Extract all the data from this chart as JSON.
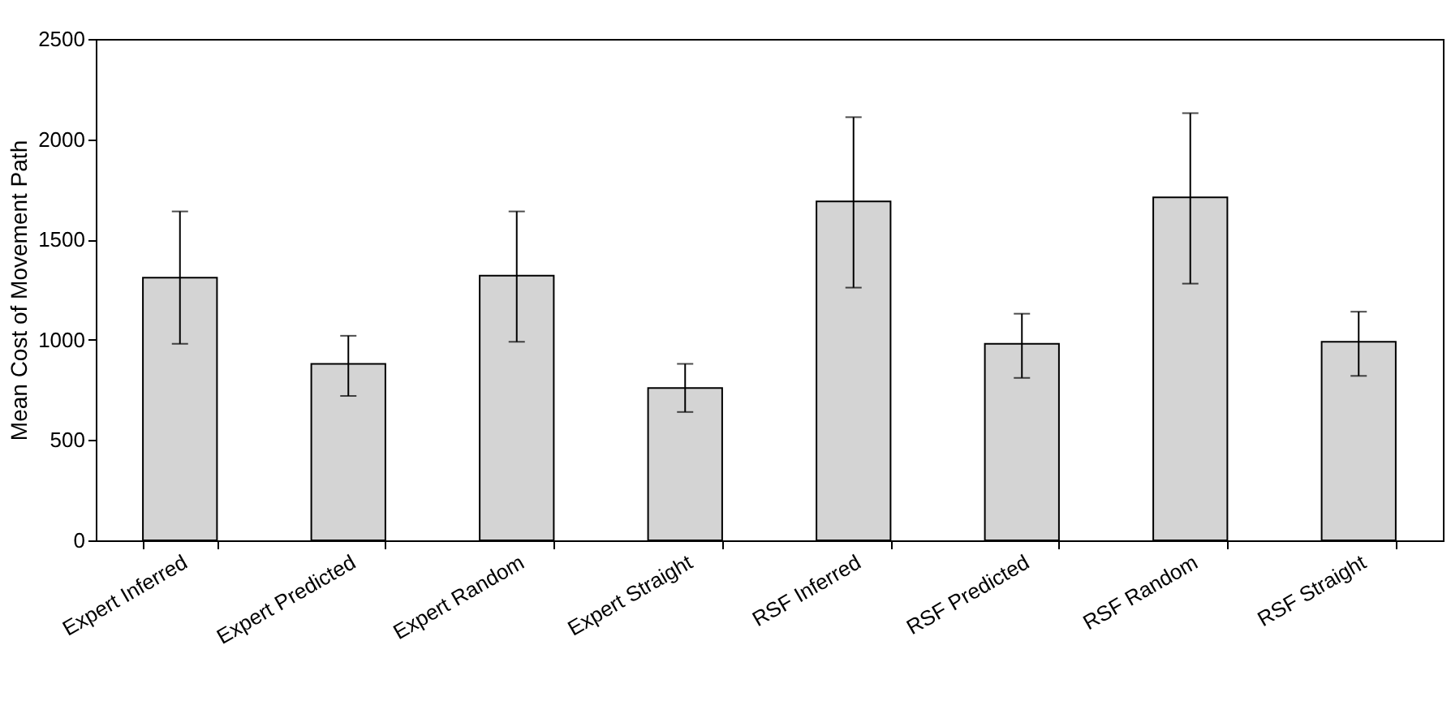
{
  "chart_data": {
    "type": "bar",
    "ylabel": "Mean Cost of Movement Path",
    "categories": [
      "Expert Inferred",
      "Expert Predicted",
      "Expert Random",
      "Expert Straight",
      "RSF Inferred",
      "RSF Predicted",
      "RSF Random",
      "RSF Straight"
    ],
    "values": [
      1310,
      880,
      1320,
      760,
      1690,
      980,
      1710,
      990
    ],
    "errors": [
      [
        980,
        1640
      ],
      [
        720,
        1020
      ],
      [
        990,
        1640
      ],
      [
        640,
        880
      ],
      [
        1260,
        2110
      ],
      [
        810,
        1130
      ],
      [
        1280,
        2130
      ],
      [
        820,
        1140
      ]
    ],
    "color": "#d4d4d4",
    "ylim": [
      0,
      2500
    ],
    "yticks": [
      0,
      500,
      1000,
      1500,
      2000,
      2500
    ],
    "grid": false
  }
}
